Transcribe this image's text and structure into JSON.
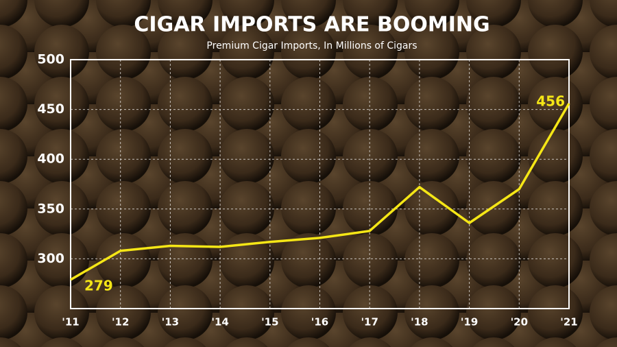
{
  "chart_data": {
    "type": "line",
    "title": "CIGAR IMPORTS ARE BOOMING",
    "subtitle": "Premium Cigar Imports, In Millions of Cigars",
    "categories": [
      "'11",
      "'12",
      "'13",
      "'14",
      "'15",
      "'16",
      "'17",
      "'18",
      "'19",
      "'20",
      "'21"
    ],
    "values": [
      279,
      308,
      313,
      312,
      317,
      321,
      328,
      372,
      336,
      370,
      456
    ],
    "color": "#f5e616",
    "ylim": [
      250,
      500
    ],
    "yticks": [
      300,
      350,
      400,
      450,
      500
    ],
    "grid": true
  }
}
